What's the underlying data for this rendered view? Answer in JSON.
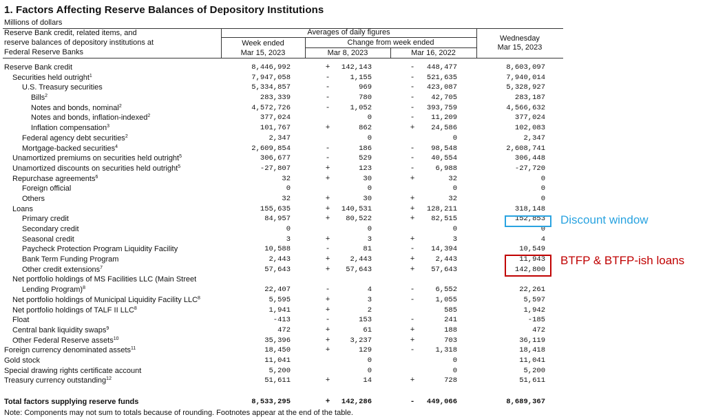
{
  "title": "1. Factors Affecting Reserve Balances of Depository Institutions",
  "units": "Millions of dollars",
  "header": {
    "stub": [
      "Reserve Bank credit, related items, and",
      "reserve balances of depository institutions at",
      "Federal Reserve Banks"
    ],
    "averages": "Averages of daily figures",
    "week_ended": [
      "Week ended",
      "Mar 15, 2023"
    ],
    "change": "Change from week ended",
    "mar8": "Mar 8, 2023",
    "mar16": "Mar 16, 2022",
    "wednesday": [
      "Wednesday",
      "Mar 15, 2023"
    ]
  },
  "rows": [
    {
      "indent": 0,
      "label": "Reserve Bank credit",
      "sup": "",
      "v1": "8,446,992",
      "s2": "+",
      "v2": "142,143",
      "s3": "-",
      "v3": "448,477",
      "v4": "8,603,097"
    },
    {
      "indent": 1,
      "label": "Securities held outright",
      "sup": "1",
      "v1": "7,947,058",
      "s2": "-",
      "v2": "1,155",
      "s3": "-",
      "v3": "521,635",
      "v4": "7,940,014"
    },
    {
      "indent": 2,
      "label": "U.S. Treasury securities",
      "sup": "",
      "v1": "5,334,857",
      "s2": "-",
      "v2": "969",
      "s3": "-",
      "v3": "423,087",
      "v4": "5,328,927"
    },
    {
      "indent": 3,
      "label": "Bills",
      "sup": "2",
      "v1": "283,339",
      "s2": "-",
      "v2": "780",
      "s3": "-",
      "v3": "42,705",
      "v4": "283,187"
    },
    {
      "indent": 3,
      "label": "Notes and bonds, nominal",
      "sup": "2",
      "v1": "4,572,726",
      "s2": "-",
      "v2": "1,052",
      "s3": "-",
      "v3": "393,759",
      "v4": "4,566,632"
    },
    {
      "indent": 3,
      "label": "Notes and bonds, inflation-indexed",
      "sup": "2",
      "v1": "377,024",
      "s2": "",
      "v2": "0",
      "s3": "-",
      "v3": "11,209",
      "v4": "377,024"
    },
    {
      "indent": 3,
      "label": "Inflation compensation",
      "sup": "3",
      "v1": "101,767",
      "s2": "+",
      "v2": "862",
      "s3": "+",
      "v3": "24,586",
      "v4": "102,083"
    },
    {
      "indent": 2,
      "label": "Federal agency debt securities",
      "sup": "2",
      "v1": "2,347",
      "s2": "",
      "v2": "0",
      "s3": "",
      "v3": "0",
      "v4": "2,347"
    },
    {
      "indent": 2,
      "label": "Mortgage-backed securities",
      "sup": "4",
      "v1": "2,609,854",
      "s2": "-",
      "v2": "186",
      "s3": "-",
      "v3": "98,548",
      "v4": "2,608,741"
    },
    {
      "indent": 1,
      "label": "Unamortized premiums on securities held outright",
      "sup": "5",
      "v1": "306,677",
      "s2": "-",
      "v2": "529",
      "s3": "-",
      "v3": "40,554",
      "v4": "306,448"
    },
    {
      "indent": 1,
      "label": "Unamortized discounts on securities held outright",
      "sup": "5",
      "v1": "-27,807",
      "s2": "+",
      "v2": "123",
      "s3": "-",
      "v3": "6,988",
      "v4": "-27,720"
    },
    {
      "indent": 1,
      "label": "Repurchase agreements",
      "sup": "6",
      "v1": "32",
      "s2": "+",
      "v2": "30",
      "s3": "+",
      "v3": "32",
      "v4": "0"
    },
    {
      "indent": 2,
      "label": "Foreign official",
      "sup": "",
      "v1": "0",
      "s2": "",
      "v2": "0",
      "s3": "",
      "v3": "0",
      "v4": "0"
    },
    {
      "indent": 2,
      "label": "Others",
      "sup": "",
      "v1": "32",
      "s2": "+",
      "v2": "30",
      "s3": "+",
      "v3": "32",
      "v4": "0"
    },
    {
      "indent": 1,
      "label": "Loans",
      "sup": "",
      "v1": "155,635",
      "s2": "+",
      "v2": "140,531",
      "s3": "+",
      "v3": "128,211",
      "v4": "318,148"
    },
    {
      "indent": 2,
      "label": "Primary credit",
      "sup": "",
      "v1": "84,957",
      "s2": "+",
      "v2": "80,522",
      "s3": "+",
      "v3": "82,515",
      "v4": "152,853"
    },
    {
      "indent": 2,
      "label": "Secondary credit",
      "sup": "",
      "v1": "0",
      "s2": "",
      "v2": "0",
      "s3": "",
      "v3": "0",
      "v4": "0"
    },
    {
      "indent": 2,
      "label": "Seasonal credit",
      "sup": "",
      "v1": "3",
      "s2": "+",
      "v2": "3",
      "s3": "+",
      "v3": "3",
      "v4": "4"
    },
    {
      "indent": 2,
      "label": "Paycheck Protection Program Liquidity Facility",
      "sup": "",
      "v1": "10,588",
      "s2": "-",
      "v2": "81",
      "s3": "-",
      "v3": "14,394",
      "v4": "10,549"
    },
    {
      "indent": 2,
      "label": "Bank Term Funding Program",
      "sup": "",
      "v1": "2,443",
      "s2": "+",
      "v2": "2,443",
      "s3": "+",
      "v3": "2,443",
      "v4": "11,943"
    },
    {
      "indent": 2,
      "label": "Other credit extensions",
      "sup": "7",
      "v1": "57,643",
      "s2": "+",
      "v2": "57,643",
      "s3": "+",
      "v3": "57,643",
      "v4": "142,800"
    },
    {
      "indent": 1,
      "label": "Net portfolio holdings of MS Facilities LLC (Main Street",
      "sup": "",
      "v1": "",
      "s2": "",
      "v2": "",
      "s3": "",
      "v3": "",
      "v4": ""
    },
    {
      "indent": 2,
      "label": "Lending Program)",
      "sup": "8",
      "v1": "22,407",
      "s2": "-",
      "v2": "4",
      "s3": "-",
      "v3": "6,552",
      "v4": "22,261"
    },
    {
      "indent": 1,
      "label": "Net portfolio holdings of Municipal Liquidity Facility LLC",
      "sup": "8",
      "v1": "5,595",
      "s2": "+",
      "v2": "3",
      "s3": "-",
      "v3": "1,055",
      "v4": "5,597"
    },
    {
      "indent": 1,
      "label": "Net portfolio holdings of TALF II LLC",
      "sup": "8",
      "v1": "1,941",
      "s2": "+",
      "v2": "2",
      "s3": "",
      "v3": "585",
      "v4": "1,942"
    },
    {
      "indent": 1,
      "label": "Float",
      "sup": "",
      "v1": "-413",
      "s2": "-",
      "v2": "153",
      "s3": "-",
      "v3": "241",
      "v4": "-185"
    },
    {
      "indent": 1,
      "label": "Central bank liquidity swaps",
      "sup": "9",
      "v1": "472",
      "s2": "+",
      "v2": "61",
      "s3": "+",
      "v3": "188",
      "v4": "472"
    },
    {
      "indent": 1,
      "label": "Other Federal Reserve assets",
      "sup": "10",
      "v1": "35,396",
      "s2": "+",
      "v2": "3,237",
      "s3": "+",
      "v3": "703",
      "v4": "36,119"
    },
    {
      "indent": 0,
      "label": "Foreign currency denominated assets",
      "sup": "11",
      "v1": "18,450",
      "s2": "+",
      "v2": "129",
      "s3": "-",
      "v3": "1,318",
      "v4": "18,418"
    },
    {
      "indent": 0,
      "label": "Gold stock",
      "sup": "",
      "v1": "11,041",
      "s2": "",
      "v2": "0",
      "s3": "",
      "v3": "0",
      "v4": "11,041"
    },
    {
      "indent": 0,
      "label": "Special drawing rights certificate account",
      "sup": "",
      "v1": "5,200",
      "s2": "",
      "v2": "0",
      "s3": "",
      "v3": "0",
      "v4": "5,200"
    },
    {
      "indent": 0,
      "label": "Treasury currency outstanding",
      "sup": "12",
      "v1": "51,611",
      "s2": "+",
      "v2": "14",
      "s3": "+",
      "v3": "728",
      "v4": "51,611"
    }
  ],
  "total": {
    "label": "Total factors supplying reserve funds",
    "v1": "8,533,295",
    "s2": "+",
    "v2": "142,286",
    "s3": "-",
    "v3": "449,066",
    "v4": "8,689,367"
  },
  "note": "Note: Components may not sum to totals because of rounding. Footnotes appear at the end of the table.",
  "annotations": {
    "discount_window": "Discount window",
    "btfp": "BTFP & BTFP-ish loans",
    "blue": "#29a3e0",
    "red": "#c00000"
  }
}
